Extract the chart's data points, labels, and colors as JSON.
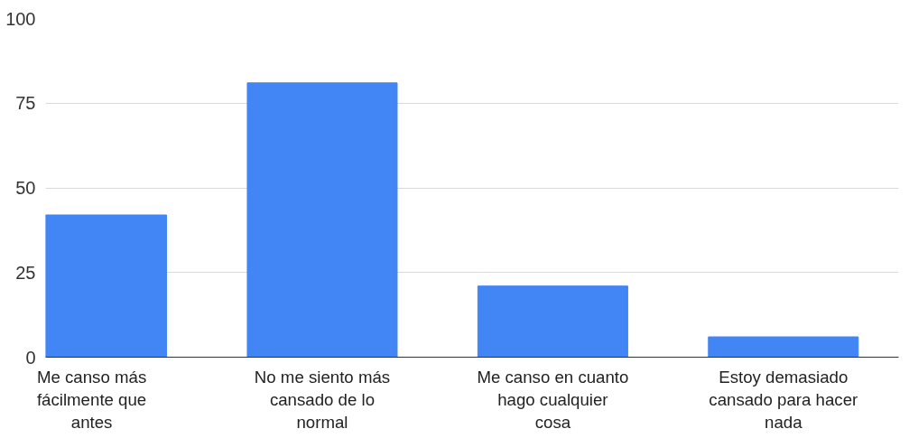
{
  "chart_data": {
    "type": "bar",
    "categories": [
      "Me canso más fácilmente que antes",
      "No me siento más cansado de lo normal",
      "Me canso en cuanto hago cualquier cosa",
      "Estoy demasiado cansado para hacer nada"
    ],
    "values": [
      42,
      81,
      21,
      6
    ],
    "color": "#4285f4",
    "ylim": [
      0,
      100
    ],
    "yticks": [
      0,
      25,
      50,
      75,
      100
    ],
    "grid": "y"
  }
}
